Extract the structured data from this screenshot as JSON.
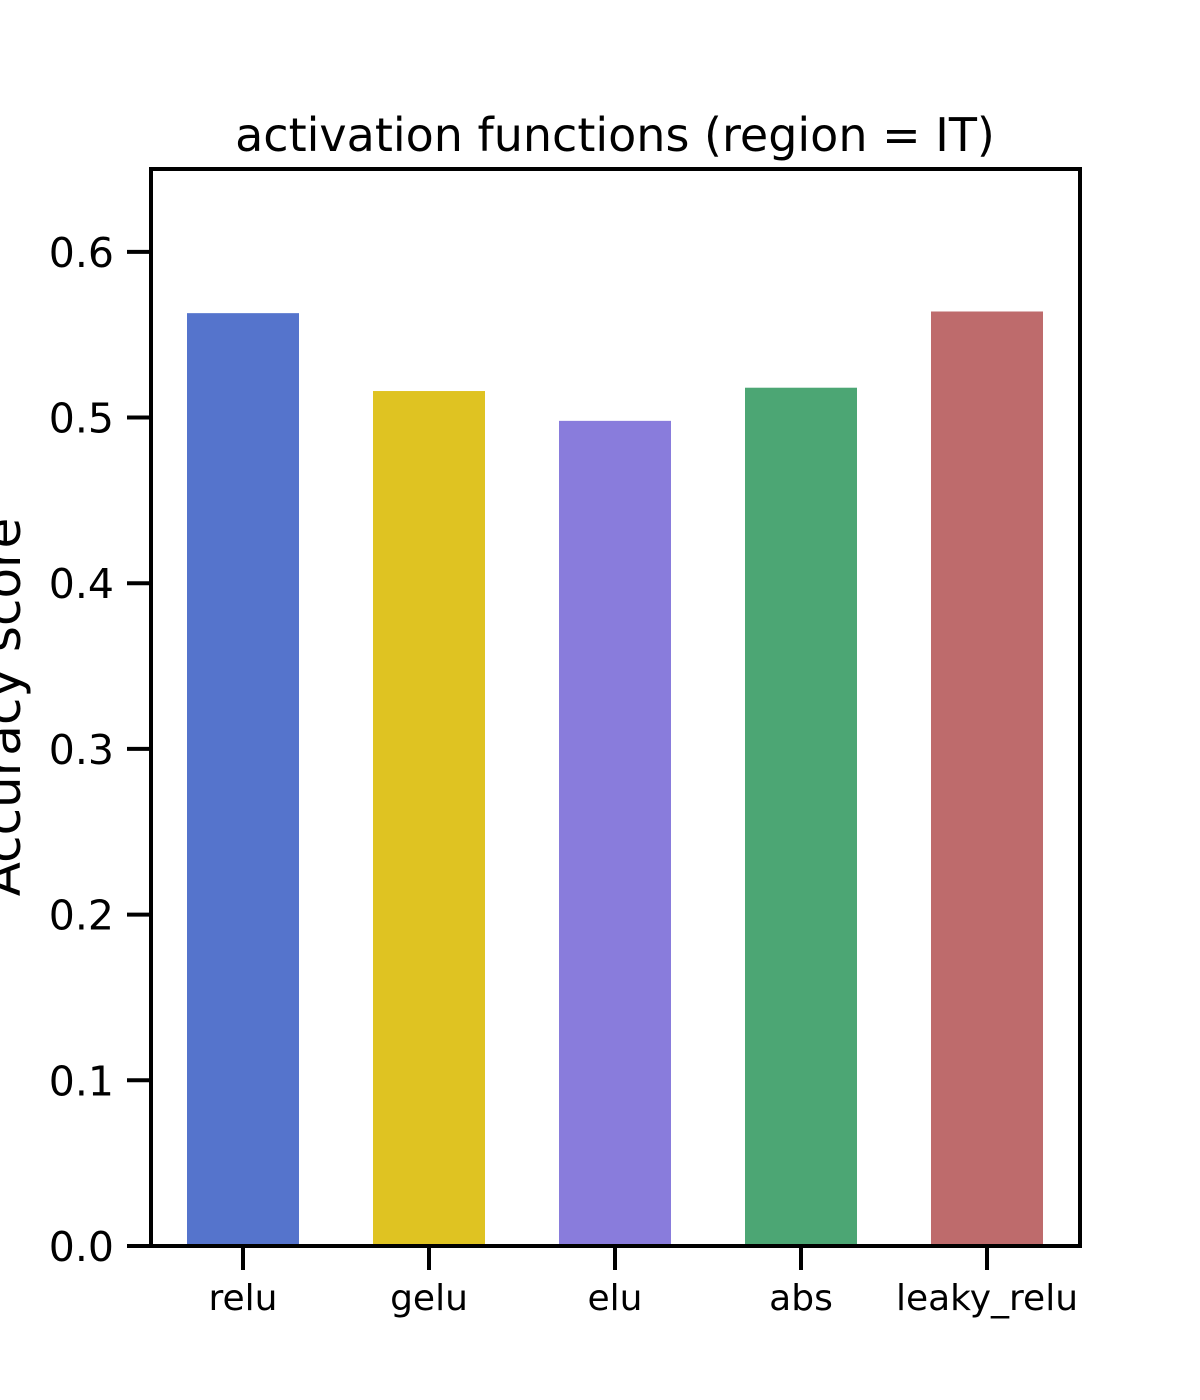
{
  "chart_data": {
    "type": "bar",
    "title": "activation functions (region = IT)",
    "xlabel": "",
    "ylabel": "Accuracy score",
    "categories": [
      "relu",
      "gelu",
      "elu",
      "abs",
      "leaky_relu"
    ],
    "values": [
      0.563,
      0.516,
      0.498,
      0.518,
      0.564
    ],
    "colors": [
      "#5574cc",
      "#dfc322",
      "#897cdc",
      "#4ca674",
      "#be6b6c"
    ],
    "ylim": [
      0,
      0.65
    ],
    "yticks": [
      0.0,
      0.1,
      0.2,
      0.3,
      0.4,
      0.5,
      0.6
    ],
    "ytick_labels": [
      "0.0",
      "0.1",
      "0.2",
      "0.3",
      "0.4",
      "0.5",
      "0.6"
    ],
    "grid": false,
    "legend": "none"
  }
}
